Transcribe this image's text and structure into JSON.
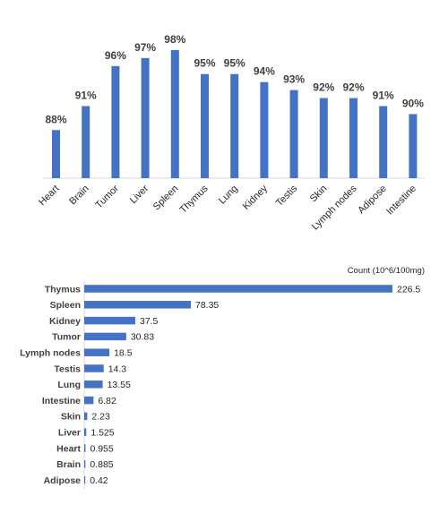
{
  "chart_data": [
    {
      "type": "bar",
      "categories": [
        "Heart",
        "Brain",
        "Tumor",
        "Liver",
        "Spleen",
        "Thymus",
        "Lung",
        "Kidney",
        "Testis",
        "Skin",
        "Lymph nodes",
        "Adipose",
        "Intestine"
      ],
      "values": [
        88,
        91,
        96,
        97,
        98,
        95,
        95,
        94,
        93,
        92,
        92,
        91,
        90
      ],
      "value_labels": [
        "88%",
        "91%",
        "96%",
        "97%",
        "98%",
        "95%",
        "95%",
        "94%",
        "93%",
        "92%",
        "92%",
        "91%",
        "90%"
      ],
      "orientation": "vertical",
      "ylim": [
        82,
        100
      ],
      "grid": false,
      "color": "#4472C4"
    },
    {
      "type": "bar",
      "orientation": "horizontal",
      "ylabel": "Count (10^6/100mg)",
      "categories": [
        "Thymus",
        "Spleen",
        "Kidney",
        "Tumor",
        "Lymph nodes",
        "Testis",
        "Lung",
        "Intestine",
        "Skin",
        "Liver",
        "Heart",
        "Brain",
        "Adipose"
      ],
      "values": [
        226.5,
        78.35,
        37.5,
        30.83,
        18.5,
        14.3,
        13.55,
        6.82,
        2.23,
        1.525,
        0.955,
        0.885,
        0.42
      ],
      "value_labels": [
        "226.5",
        "78.35",
        "37.5",
        "30.83",
        "18.5",
        "14.3",
        "13.55",
        "6.82",
        "2.23",
        "1.525",
        "0.955",
        "0.885",
        "0.42"
      ],
      "xlim": [
        0,
        226.5
      ],
      "grid": false,
      "color": "#4472C4"
    }
  ]
}
